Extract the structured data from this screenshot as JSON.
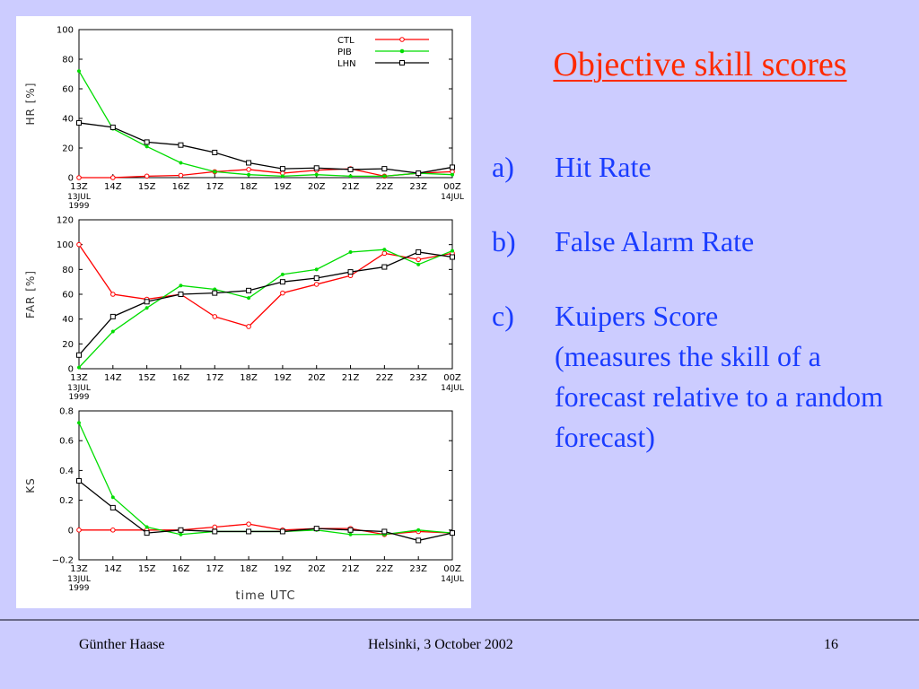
{
  "slide": {
    "title": "Objective skill scores",
    "bullets": [
      {
        "marker": "a)",
        "text": "Hit Rate",
        "sub": ""
      },
      {
        "marker": "b)",
        "text": "False Alarm Rate",
        "sub": ""
      },
      {
        "marker": "c)",
        "text": "Kuipers Score",
        "sub": "(measures the skill of a forecast relative to a random forecast)"
      }
    ],
    "footer": {
      "author": "Günther Haase",
      "event": "Helsinki, 3 October 2002",
      "page": "16"
    },
    "colors": {
      "background": "#ccccff",
      "title": "#ff2a00",
      "text": "#1a3cff"
    }
  },
  "chart_data": [
    {
      "type": "line",
      "ylabel": "HR [%]",
      "ylim": [
        0,
        100
      ],
      "yticks": [
        0,
        20,
        40,
        60,
        80,
        100
      ],
      "x": [
        "13Z",
        "14Z",
        "15Z",
        "16Z",
        "17Z",
        "18Z",
        "19Z",
        "20Z",
        "21Z",
        "22Z",
        "23Z",
        "00Z"
      ],
      "x_start_label": [
        "13JUL",
        "1999"
      ],
      "x_end_label": "14JUL",
      "legend": "top-right",
      "series": [
        {
          "name": "CTL",
          "color": "#ff0000",
          "marker": "circle",
          "values": [
            0,
            0,
            1,
            1.5,
            4,
            5.5,
            3,
            5,
            6,
            1,
            3,
            4
          ]
        },
        {
          "name": "PIB",
          "color": "#00dd00",
          "marker": "dot",
          "values": [
            72,
            33,
            21,
            10,
            4,
            2,
            1,
            2,
            1,
            1,
            3,
            2
          ]
        },
        {
          "name": "LHN",
          "color": "#000000",
          "marker": "square",
          "values": [
            37,
            34,
            24,
            22,
            17,
            10,
            6,
            6.5,
            5.5,
            6,
            3,
            7
          ]
        }
      ]
    },
    {
      "type": "line",
      "ylabel": "FAR [%]",
      "ylim": [
        0,
        120
      ],
      "yticks": [
        0,
        20,
        40,
        60,
        80,
        100,
        120
      ],
      "x": [
        "13Z",
        "14Z",
        "15Z",
        "16Z",
        "17Z",
        "18Z",
        "19Z",
        "20Z",
        "21Z",
        "22Z",
        "23Z",
        "00Z"
      ],
      "x_start_label": [
        "13JUL",
        "1999"
      ],
      "x_end_label": "14JUL",
      "series": [
        {
          "name": "CTL",
          "color": "#ff0000",
          "marker": "circle",
          "values": [
            100,
            60,
            56,
            60,
            42,
            34,
            61,
            68,
            75,
            93,
            88,
            93
          ]
        },
        {
          "name": "PIB",
          "color": "#00dd00",
          "marker": "dot",
          "values": [
            1,
            30,
            49,
            67,
            64,
            57,
            76,
            80,
            94,
            96,
            84,
            95
          ]
        },
        {
          "name": "LHN",
          "color": "#000000",
          "marker": "square",
          "values": [
            11,
            42,
            54,
            60,
            61,
            63,
            70,
            73,
            78,
            82,
            94,
            90
          ]
        }
      ]
    },
    {
      "type": "line",
      "ylabel": "KS",
      "xlabel": "time UTC",
      "ylim": [
        -0.2,
        0.8
      ],
      "yticks": [
        -0.2,
        0,
        0.2,
        0.4,
        0.6,
        0.8
      ],
      "ytick_labels": [
        "−0.2",
        "0",
        "0.2",
        "0.4",
        "0.6",
        "0.8"
      ],
      "x": [
        "13Z",
        "14Z",
        "15Z",
        "16Z",
        "17Z",
        "18Z",
        "19Z",
        "20Z",
        "21Z",
        "22Z",
        "23Z",
        "00Z"
      ],
      "x_start_label": [
        "13JUL",
        "1999"
      ],
      "x_end_label": "14JUL",
      "series": [
        {
          "name": "CTL",
          "color": "#ff0000",
          "marker": "circle",
          "values": [
            0,
            0,
            0,
            0,
            0.02,
            0.04,
            0,
            0.01,
            0.01,
            -0.03,
            -0.01,
            -0.02
          ]
        },
        {
          "name": "PIB",
          "color": "#00dd00",
          "marker": "dot",
          "values": [
            0.72,
            0.22,
            0.02,
            -0.03,
            -0.01,
            -0.01,
            -0.01,
            0,
            -0.03,
            -0.03,
            0,
            -0.02
          ]
        },
        {
          "name": "LHN",
          "color": "#000000",
          "marker": "square",
          "values": [
            0.33,
            0.15,
            -0.02,
            0,
            -0.01,
            -0.01,
            -0.01,
            0.01,
            0,
            -0.01,
            -0.07,
            -0.02
          ]
        }
      ]
    }
  ]
}
